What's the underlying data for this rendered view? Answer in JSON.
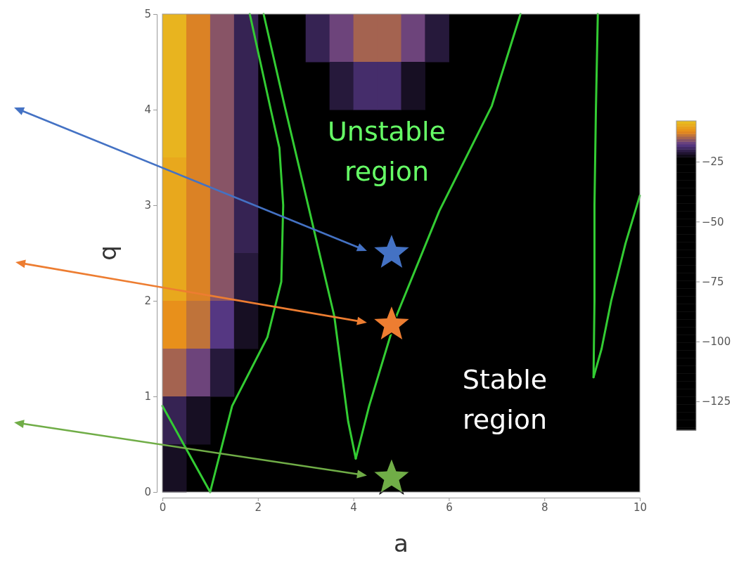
{
  "chart_data": {
    "type": "heatmap",
    "xlabel": "a",
    "ylabel": "q",
    "xlim": [
      0,
      10
    ],
    "xticks": [
      0,
      2,
      4,
      6,
      8,
      10
    ],
    "ylim": [
      0,
      5
    ],
    "yticks": [
      0,
      1,
      2,
      3,
      4,
      5
    ],
    "cells": [
      [
        -9,
        -13,
        -16,
        -20,
        null,
        null,
        -20,
        -17,
        -15,
        -15,
        -17,
        -21,
        null,
        null,
        null,
        null,
        null,
        null,
        null,
        null
      ],
      [
        -9,
        -13,
        -16,
        -20,
        null,
        null,
        null,
        -21,
        -19,
        -19,
        -22,
        null,
        null,
        null,
        null,
        null,
        null,
        null,
        null,
        null
      ],
      [
        -9,
        -13,
        -16,
        -20,
        null,
        null,
        null,
        null,
        null,
        null,
        null,
        null,
        null,
        null,
        null,
        null,
        null,
        null,
        null,
        null
      ],
      [
        -10,
        -13,
        -16,
        -20,
        null,
        null,
        null,
        null,
        null,
        null,
        null,
        null,
        null,
        null,
        null,
        null,
        null,
        null,
        null,
        null
      ],
      [
        -10,
        -13,
        -16,
        -20,
        null,
        null,
        null,
        null,
        null,
        null,
        null,
        null,
        null,
        null,
        null,
        null,
        null,
        null,
        null,
        null
      ],
      [
        -10,
        -13,
        -16,
        -21,
        null,
        null,
        null,
        null,
        null,
        null,
        null,
        null,
        null,
        null,
        null,
        null,
        null,
        null,
        null,
        null
      ],
      [
        -12,
        -14,
        -18,
        -22,
        null,
        null,
        null,
        null,
        null,
        null,
        null,
        null,
        null,
        null,
        null,
        null,
        null,
        null,
        null,
        null
      ],
      [
        -15,
        -17,
        -21,
        null,
        null,
        null,
        null,
        null,
        null,
        null,
        null,
        null,
        null,
        null,
        null,
        null,
        null,
        null,
        null,
        null
      ],
      [
        -20,
        -22,
        null,
        null,
        null,
        null,
        null,
        null,
        null,
        null,
        null,
        null,
        null,
        null,
        null,
        null,
        null,
        null,
        null,
        null
      ],
      [
        -22,
        null,
        null,
        null,
        null,
        null,
        null,
        null,
        null,
        null,
        null,
        null,
        null,
        null,
        null,
        null,
        null,
        null,
        null,
        null
      ]
    ],
    "clim": [
      -137,
      -8
    ],
    "cticks": [
      -25,
      -50,
      -75,
      -100,
      -125
    ],
    "series": [
      {
        "type": "line",
        "color": "#33cc33",
        "x": [
          0,
          1
        ],
        "values": [
          0.9,
          0
        ]
      },
      {
        "type": "line",
        "color": "#33cc33",
        "x": [
          1,
          1.46,
          2.2,
          2.49,
          2.53,
          2.45,
          2.27,
          1.83
        ],
        "values": [
          0,
          0.9,
          1.62,
          2.2,
          3,
          3.6,
          4,
          5
        ]
      },
      {
        "type": "line",
        "color": "#33cc33",
        "x": [
          2.12,
          2.56,
          3.08,
          3.6,
          3.89,
          4.05
        ],
        "values": [
          5,
          4.04,
          2.94,
          1.84,
          0.74,
          0.35
        ]
      },
      {
        "type": "line",
        "color": "#33cc33",
        "x": [
          4.05,
          4.33,
          4.9,
          5.8,
          6.9,
          7.5
        ],
        "values": [
          0.35,
          0.9,
          1.84,
          2.94,
          4.04,
          5
        ]
      },
      {
        "type": "line",
        "color": "#33cc33",
        "x": [
          9.12,
          9.08,
          9.05,
          9.05,
          9.03
        ],
        "values": [
          5,
          4,
          3,
          2,
          1.2
        ]
      },
      {
        "type": "line",
        "color": "#33cc33",
        "x": [
          9.03,
          9.2,
          9.4,
          9.7,
          10
        ],
        "values": [
          1.2,
          1.5,
          2,
          2.6,
          3.1
        ]
      },
      {
        "type": "scatter",
        "marker": "star",
        "x": [
          4.8,
          4.8,
          4.8
        ],
        "values": [
          2.5,
          1.75,
          0.15
        ],
        "colors": [
          "#4472c4",
          "#ed7d31",
          "#70ad47"
        ]
      }
    ],
    "annotations": [
      "Unstable region",
      "Stable region"
    ]
  }
}
